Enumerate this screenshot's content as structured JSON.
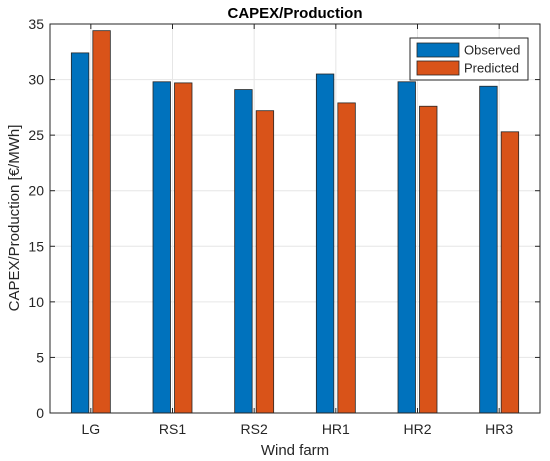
{
  "chart_data": {
    "type": "bar",
    "title": "CAPEX/Production",
    "xlabel": "Wind farm",
    "ylabel": "CAPEX/Production [€/MWh]",
    "categories": [
      "LG",
      "RS1",
      "RS2",
      "HR1",
      "HR2",
      "HR3"
    ],
    "series": [
      {
        "name": "Observed",
        "color": "#0072BD",
        "values": [
          32.4,
          29.8,
          29.1,
          30.5,
          29.8,
          29.4
        ]
      },
      {
        "name": "Predicted",
        "color": "#D95319",
        "values": [
          34.4,
          29.7,
          27.2,
          27.9,
          27.6,
          25.3
        ]
      }
    ],
    "ylim": [
      0,
      35
    ],
    "yticks": [
      0,
      5,
      10,
      15,
      20,
      25,
      30,
      35
    ],
    "grid": true,
    "legend_position": "top-right"
  }
}
